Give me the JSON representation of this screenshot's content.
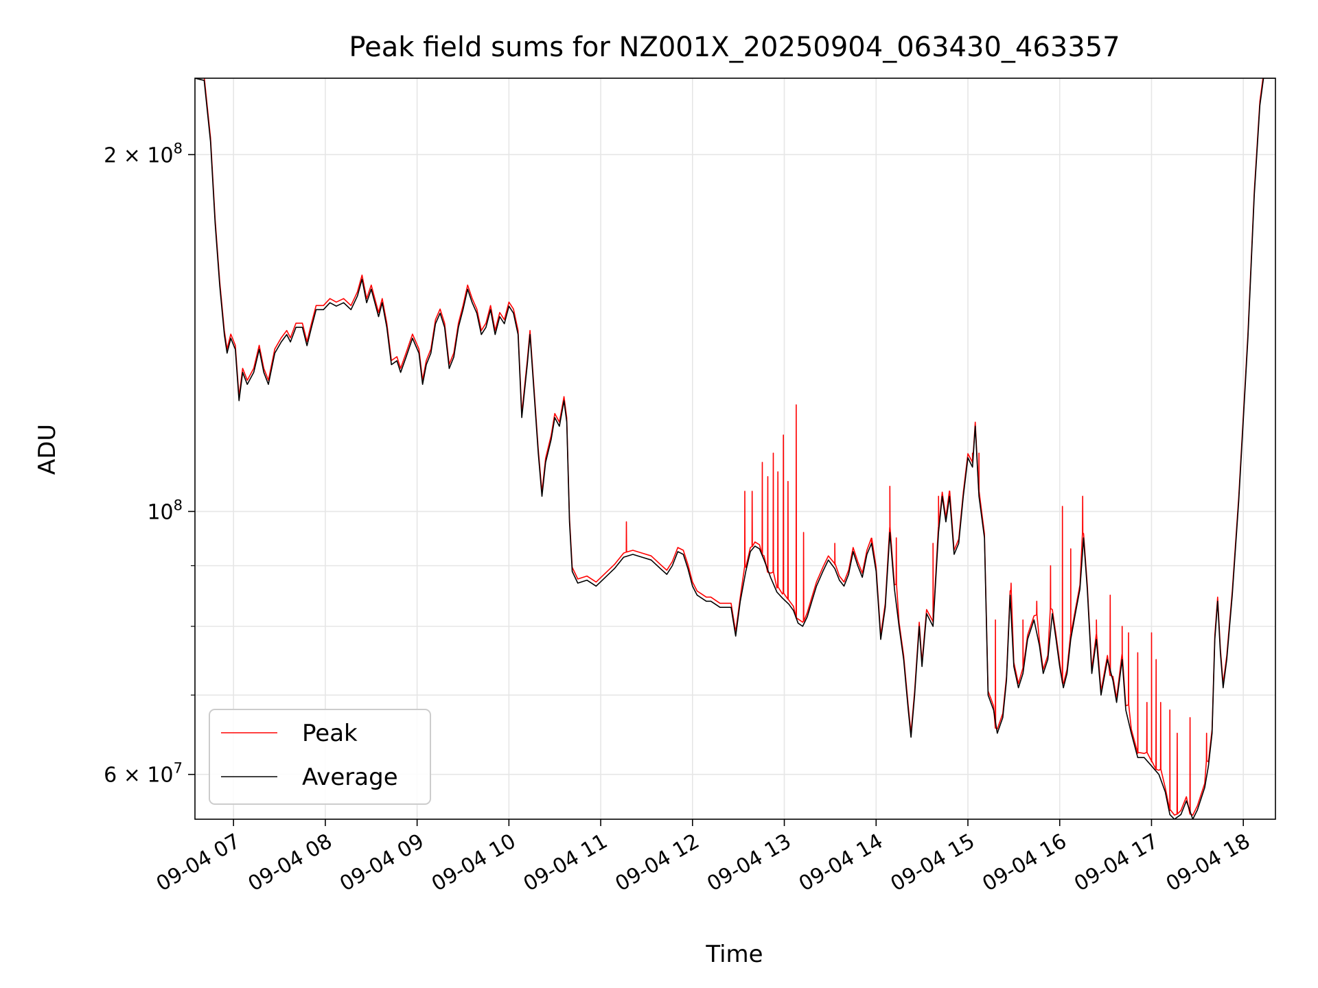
{
  "chart_data": {
    "type": "line",
    "title": "Peak field sums for NZ001X_20250904_063430_463357",
    "xlabel": "Time",
    "ylabel": "ADU",
    "yscale": "log",
    "xlim": [
      6.58,
      18.35
    ],
    "ylim": [
      55000000,
      232000000
    ],
    "grid": true,
    "legend_position": "lower-left",
    "x_ticks": [
      {
        "value": 7,
        "label": "09-04 07"
      },
      {
        "value": 8,
        "label": "09-04 08"
      },
      {
        "value": 9,
        "label": "09-04 09"
      },
      {
        "value": 10,
        "label": "09-04 10"
      },
      {
        "value": 11,
        "label": "09-04 11"
      },
      {
        "value": 12,
        "label": "09-04 12"
      },
      {
        "value": 13,
        "label": "09-04 13"
      },
      {
        "value": 14,
        "label": "09-04 14"
      },
      {
        "value": 15,
        "label": "09-04 15"
      },
      {
        "value": 16,
        "label": "09-04 16"
      },
      {
        "value": 17,
        "label": "09-04 17"
      },
      {
        "value": 18,
        "label": "09-04 18"
      }
    ],
    "y_ticks": [
      {
        "value": 200000000,
        "base": "2 × 10",
        "exp": "8"
      },
      {
        "value": 100000000,
        "base": "10",
        "exp": "8"
      },
      {
        "value": 60000000,
        "base": "6 × 10",
        "exp": "7"
      }
    ],
    "y_minor_ticks": [
      70000000,
      80000000,
      90000000
    ],
    "x_unit": "hour of day (2025-09-04)",
    "series": [
      {
        "name": "Average",
        "color": "#000000",
        "points": [
          [
            6.58,
            232000000
          ],
          [
            6.68,
            231000000
          ],
          [
            6.75,
            205000000
          ],
          [
            6.8,
            175000000
          ],
          [
            6.85,
            155000000
          ],
          [
            6.9,
            141000000
          ],
          [
            6.93,
            136000000
          ],
          [
            6.97,
            140000000
          ],
          [
            7.02,
            137000000
          ],
          [
            7.06,
            124000000
          ],
          [
            7.1,
            131000000
          ],
          [
            7.15,
            128000000
          ],
          [
            7.22,
            131000000
          ],
          [
            7.28,
            137000000
          ],
          [
            7.33,
            131000000
          ],
          [
            7.38,
            128000000
          ],
          [
            7.45,
            136000000
          ],
          [
            7.52,
            139000000
          ],
          [
            7.58,
            141000000
          ],
          [
            7.62,
            139000000
          ],
          [
            7.68,
            143000000
          ],
          [
            7.75,
            143000000
          ],
          [
            7.8,
            138000000
          ],
          [
            7.85,
            143000000
          ],
          [
            7.9,
            148000000
          ],
          [
            7.98,
            148000000
          ],
          [
            8.05,
            150000000
          ],
          [
            8.12,
            149000000
          ],
          [
            8.2,
            150000000
          ],
          [
            8.28,
            148000000
          ],
          [
            8.35,
            152000000
          ],
          [
            8.4,
            157000000
          ],
          [
            8.45,
            150000000
          ],
          [
            8.5,
            154000000
          ],
          [
            8.55,
            149000000
          ],
          [
            8.58,
            146000000
          ],
          [
            8.62,
            150000000
          ],
          [
            8.67,
            143000000
          ],
          [
            8.72,
            133000000
          ],
          [
            8.78,
            134000000
          ],
          [
            8.82,
            131000000
          ],
          [
            8.88,
            135000000
          ],
          [
            8.95,
            140000000
          ],
          [
            9.02,
            136000000
          ],
          [
            9.06,
            128000000
          ],
          [
            9.1,
            133000000
          ],
          [
            9.15,
            136000000
          ],
          [
            9.2,
            144000000
          ],
          [
            9.25,
            147000000
          ],
          [
            9.3,
            143000000
          ],
          [
            9.35,
            132000000
          ],
          [
            9.4,
            135000000
          ],
          [
            9.45,
            143000000
          ],
          [
            9.5,
            148000000
          ],
          [
            9.55,
            154000000
          ],
          [
            9.6,
            150000000
          ],
          [
            9.65,
            147000000
          ],
          [
            9.7,
            141000000
          ],
          [
            9.75,
            143000000
          ],
          [
            9.8,
            148000000
          ],
          [
            9.85,
            141000000
          ],
          [
            9.9,
            146000000
          ],
          [
            9.95,
            144000000
          ],
          [
            10.0,
            149000000
          ],
          [
            10.05,
            147000000
          ],
          [
            10.1,
            141000000
          ],
          [
            10.14,
            120000000
          ],
          [
            10.2,
            133000000
          ],
          [
            10.23,
            141000000
          ],
          [
            10.28,
            124000000
          ],
          [
            10.32,
            112000000
          ],
          [
            10.36,
            103000000
          ],
          [
            10.4,
            110000000
          ],
          [
            10.46,
            115000000
          ],
          [
            10.5,
            120000000
          ],
          [
            10.55,
            118000000
          ],
          [
            10.6,
            124000000
          ],
          [
            10.63,
            119000000
          ],
          [
            10.66,
            98000000
          ],
          [
            10.69,
            89000000
          ],
          [
            10.75,
            87000000
          ],
          [
            10.85,
            87500000
          ],
          [
            10.95,
            86500000
          ],
          [
            11.05,
            88000000
          ],
          [
            11.15,
            89500000
          ],
          [
            11.25,
            91500000
          ],
          [
            11.35,
            92000000
          ],
          [
            11.45,
            91500000
          ],
          [
            11.55,
            91000000
          ],
          [
            11.65,
            89500000
          ],
          [
            11.72,
            88500000
          ],
          [
            11.78,
            90000000
          ],
          [
            11.84,
            92500000
          ],
          [
            11.9,
            92000000
          ],
          [
            11.95,
            89500000
          ],
          [
            12.0,
            86500000
          ],
          [
            12.05,
            85000000
          ],
          [
            12.1,
            84500000
          ],
          [
            12.15,
            84000000
          ],
          [
            12.2,
            84000000
          ],
          [
            12.25,
            83500000
          ],
          [
            12.3,
            83000000
          ],
          [
            12.35,
            83000000
          ],
          [
            12.42,
            83000000
          ],
          [
            12.47,
            78500000
          ],
          [
            12.52,
            84000000
          ],
          [
            12.58,
            89000000
          ],
          [
            12.63,
            92500000
          ],
          [
            12.68,
            93500000
          ],
          [
            12.73,
            93000000
          ],
          [
            12.78,
            91000000
          ],
          [
            12.85,
            88000000
          ],
          [
            12.92,
            85500000
          ],
          [
            12.98,
            84500000
          ],
          [
            13.05,
            83500000
          ],
          [
            13.1,
            82500000
          ],
          [
            13.15,
            80500000
          ],
          [
            13.2,
            80000000
          ],
          [
            13.25,
            81500000
          ],
          [
            13.3,
            84000000
          ],
          [
            13.35,
            86500000
          ],
          [
            13.42,
            89000000
          ],
          [
            13.48,
            91000000
          ],
          [
            13.55,
            89500000
          ],
          [
            13.6,
            87500000
          ],
          [
            13.65,
            86500000
          ],
          [
            13.7,
            88500000
          ],
          [
            13.75,
            92500000
          ],
          [
            13.8,
            90000000
          ],
          [
            13.85,
            88000000
          ],
          [
            13.9,
            92000000
          ],
          [
            13.95,
            94000000
          ],
          [
            14.0,
            89000000
          ],
          [
            14.05,
            78000000
          ],
          [
            14.1,
            83000000
          ],
          [
            14.15,
            96000000
          ],
          [
            14.2,
            86000000
          ],
          [
            14.25,
            80000000
          ],
          [
            14.3,
            75000000
          ],
          [
            14.35,
            68000000
          ],
          [
            14.38,
            64500000
          ],
          [
            14.42,
            70000000
          ],
          [
            14.47,
            80000000
          ],
          [
            14.5,
            74000000
          ],
          [
            14.55,
            82000000
          ],
          [
            14.62,
            80000000
          ],
          [
            14.68,
            96000000
          ],
          [
            14.72,
            103000000
          ],
          [
            14.76,
            98000000
          ],
          [
            14.8,
            103000000
          ],
          [
            14.85,
            92000000
          ],
          [
            14.9,
            94000000
          ],
          [
            14.95,
            103000000
          ],
          [
            15.0,
            111000000
          ],
          [
            15.05,
            109000000
          ],
          [
            15.08,
            118000000
          ],
          [
            15.12,
            103000000
          ],
          [
            15.18,
            95000000
          ],
          [
            15.22,
            70000000
          ],
          [
            15.28,
            68000000
          ],
          [
            15.32,
            65000000
          ],
          [
            15.38,
            67000000
          ],
          [
            15.42,
            72000000
          ],
          [
            15.46,
            85000000
          ],
          [
            15.5,
            74000000
          ],
          [
            15.55,
            71000000
          ],
          [
            15.6,
            73000000
          ],
          [
            15.65,
            78000000
          ],
          [
            15.72,
            81000000
          ],
          [
            15.78,
            77000000
          ],
          [
            15.82,
            73000000
          ],
          [
            15.87,
            75000000
          ],
          [
            15.92,
            82000000
          ],
          [
            15.96,
            78000000
          ],
          [
            16.0,
            74000000
          ],
          [
            16.04,
            71000000
          ],
          [
            16.08,
            73000000
          ],
          [
            16.12,
            78000000
          ],
          [
            16.17,
            82000000
          ],
          [
            16.22,
            86000000
          ],
          [
            16.26,
            95000000
          ],
          [
            16.3,
            86000000
          ],
          [
            16.35,
            73000000
          ],
          [
            16.4,
            78000000
          ],
          [
            16.45,
            70000000
          ],
          [
            16.52,
            75000000
          ],
          [
            16.58,
            72000000
          ],
          [
            16.62,
            69000000
          ],
          [
            16.68,
            75000000
          ],
          [
            16.72,
            68000000
          ],
          [
            16.78,
            65000000
          ],
          [
            16.85,
            62000000
          ],
          [
            16.92,
            62000000
          ],
          [
            17.0,
            61000000
          ],
          [
            17.08,
            60000000
          ],
          [
            17.15,
            58000000
          ],
          [
            17.2,
            55500000
          ],
          [
            17.25,
            55000000
          ],
          [
            17.32,
            55500000
          ],
          [
            17.38,
            57000000
          ],
          [
            17.45,
            55000000
          ],
          [
            17.5,
            56000000
          ],
          [
            17.58,
            58500000
          ],
          [
            17.62,
            61000000
          ],
          [
            17.66,
            65000000
          ],
          [
            17.69,
            78000000
          ],
          [
            17.72,
            84000000
          ],
          [
            17.75,
            76000000
          ],
          [
            17.78,
            71000000
          ],
          [
            17.82,
            75000000
          ],
          [
            17.88,
            85000000
          ],
          [
            17.95,
            102000000
          ],
          [
            18.05,
            140000000
          ],
          [
            18.12,
            185000000
          ],
          [
            18.18,
            220000000
          ],
          [
            18.22,
            232000000
          ],
          [
            18.35,
            232000000
          ]
        ]
      },
      {
        "name": "Peak",
        "color": "#ff0000",
        "points": [
          [
            11.28,
            98000000
          ],
          [
            12.57,
            104000000
          ],
          [
            12.65,
            104000000
          ],
          [
            12.76,
            110000000
          ],
          [
            12.82,
            107000000
          ],
          [
            12.88,
            112000000
          ],
          [
            12.93,
            108000000
          ],
          [
            12.99,
            116000000
          ],
          [
            13.04,
            106000000
          ],
          [
            13.13,
            123000000
          ],
          [
            13.21,
            96000000
          ],
          [
            13.55,
            94000000
          ],
          [
            13.95,
            94000000
          ],
          [
            14.15,
            105000000
          ],
          [
            14.22,
            95000000
          ],
          [
            14.62,
            94000000
          ],
          [
            14.68,
            103000000
          ],
          [
            14.8,
            104000000
          ],
          [
            15.05,
            112000000
          ],
          [
            15.12,
            112000000
          ],
          [
            15.3,
            81000000
          ],
          [
            15.47,
            87000000
          ],
          [
            15.6,
            81000000
          ],
          [
            15.75,
            84000000
          ],
          [
            15.9,
            90000000
          ],
          [
            16.03,
            101000000
          ],
          [
            16.12,
            93000000
          ],
          [
            16.25,
            103000000
          ],
          [
            16.4,
            81000000
          ],
          [
            16.55,
            85000000
          ],
          [
            16.68,
            80000000
          ],
          [
            16.75,
            79000000
          ],
          [
            16.85,
            76000000
          ],
          [
            16.95,
            69000000
          ],
          [
            17.0,
            79000000
          ],
          [
            17.05,
            75000000
          ],
          [
            17.1,
            69000000
          ],
          [
            17.2,
            68000000
          ],
          [
            17.28,
            65000000
          ],
          [
            17.42,
            67000000
          ],
          [
            17.6,
            65000000
          ]
        ]
      }
    ]
  }
}
